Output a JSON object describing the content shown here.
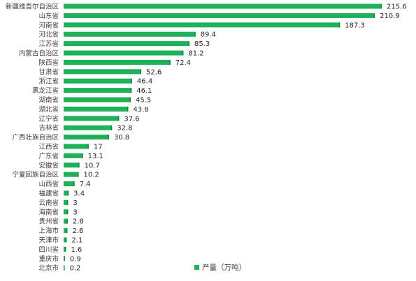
{
  "chart_data": {
    "type": "bar",
    "orientation": "horizontal",
    "categories": [
      "新疆维吾尔自治区",
      "山东省",
      "河南省",
      "河北省",
      "江苏省",
      "内蒙古自治区",
      "陕西省",
      "甘肃省",
      "浙江省",
      "黑龙江省",
      "湖南省",
      "湖北省",
      "辽宁省",
      "吉林省",
      "广西壮族自治区",
      "江西省",
      "广东省",
      "安徽省",
      "宁夏回族自治区",
      "山西省",
      "福建省",
      "云南省",
      "海南省",
      "贵州省",
      "上海市",
      "天津市",
      "四川省",
      "重庆市",
      "北京市"
    ],
    "series": [
      {
        "name": "产量（万吨）",
        "values": [
          215.6,
          210.9,
          187.3,
          89.4,
          85.3,
          81.2,
          72.4,
          52.6,
          46.4,
          46.1,
          45.5,
          43.8,
          37.6,
          32.8,
          30.8,
          17,
          13.1,
          10.7,
          10.2,
          7.4,
          3.4,
          3,
          3,
          2.8,
          2.6,
          2.1,
          1.6,
          0.9,
          0.2
        ]
      }
    ],
    "value_labels": [
      "215.6",
      "210.9",
      "187.3",
      "89.4",
      "85.3",
      "81.2",
      "72.4",
      "52.6",
      "46.4",
      "46.1",
      "45.5",
      "43.8",
      "37.6",
      "32.8",
      "30.8",
      "17",
      "13.1",
      "10.7",
      "10.2",
      "7.4",
      "3.4",
      "3",
      "3",
      "2.8",
      "2.6",
      "2.1",
      "1.6",
      "0.9",
      "0.2"
    ],
    "legend_position": "bottom",
    "grid": false,
    "colors": {
      "bar": "#1fb158",
      "bar_edge": "#128a40"
    }
  }
}
